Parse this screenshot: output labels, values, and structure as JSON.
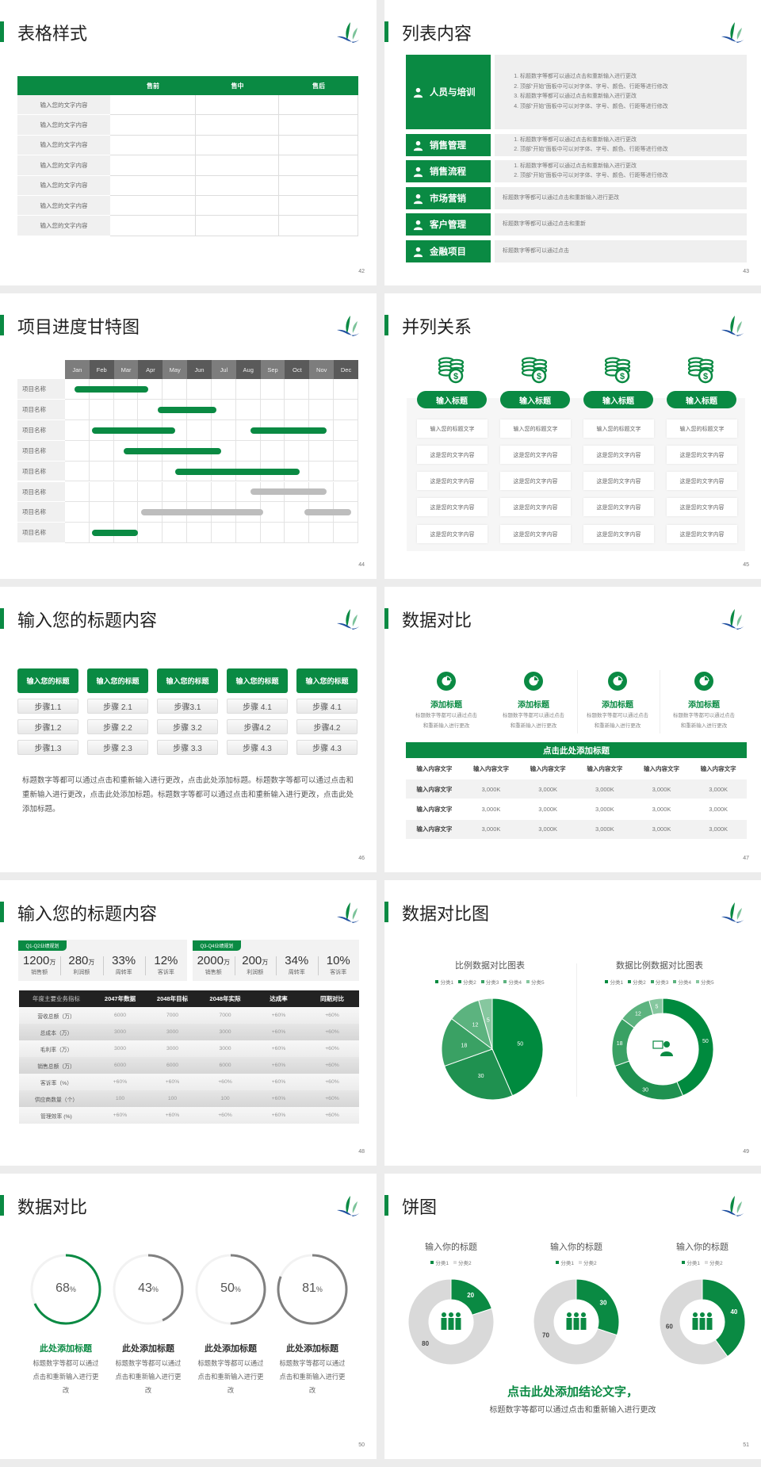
{
  "colors": {
    "green": "#0a8a43",
    "gray_bar": "#bdbdbd",
    "dark": "#222222",
    "ring_gray": "#808080",
    "track": "#f2f2f2",
    "donut_gray": "#d9d9d9"
  },
  "slides": {
    "s42": {
      "title": "表格样式",
      "page": "42",
      "headers": [
        "售前",
        "售中",
        "售后"
      ],
      "rows": [
        "输入您的文字内容",
        "输入您的文字内容",
        "输入您的文字内容",
        "输入您的文字内容",
        "输入您的文字内容",
        "输入您的文字内容",
        "输入您的文字内容"
      ]
    },
    "s43": {
      "title": "列表内容",
      "page": "43",
      "items": [
        {
          "label": "人员与培训",
          "icon": "people-training-icon",
          "lines": [
            "标题数字等都可以通过点击和重新输入进行更改",
            "顶部“开始”面板中可以对字体、字号、颜色、行距等进行修改",
            "标题数字等都可以通过点击和重新输入进行更改",
            "顶部“开始”面板中可以对字体、字号、颜色、行距等进行修改"
          ]
        },
        {
          "label": "销售管理",
          "icon": "user-gear-icon",
          "lines": [
            "标题数字等都可以通过点击和重新输入进行更改",
            "顶部“开始”面板中可以对字体、字号、颜色、行距等进行修改"
          ]
        },
        {
          "label": "销售流程",
          "icon": "shield-icon",
          "lines": [
            "标题数字等都可以通过点击和重新输入进行更改",
            "顶部“开始”面板中可以对字体、字号、颜色、行距等进行修改"
          ]
        },
        {
          "label": "市场营销",
          "icon": "bar-chart-icon",
          "text": "标题数字等都可以通过点击和重新输入进行更改"
        },
        {
          "label": "客户管理",
          "icon": "user-group-icon",
          "text": "标题数字等都可以通过点击和重新"
        },
        {
          "label": "金融项目",
          "icon": "money-hand-icon",
          "text": "标题数字等都可以通过点击"
        }
      ]
    },
    "s44": {
      "title": "项目进度甘特图",
      "page": "44",
      "months": [
        "Jan",
        "Feb",
        "Mar",
        "Apr",
        "May",
        "Jun",
        "Jul",
        "Aug",
        "Sep",
        "Oct",
        "Nov",
        "Dec"
      ],
      "rows": [
        {
          "name": "项目名称",
          "bars": [
            {
              "start": 0.4,
              "end": 3.4,
              "status": "green"
            }
          ]
        },
        {
          "name": "项目名称",
          "bars": [
            {
              "start": 3.8,
              "end": 6.2,
              "status": "green"
            }
          ]
        },
        {
          "name": "项目名称",
          "bars": [
            {
              "start": 1.1,
              "end": 4.5,
              "status": "green"
            },
            {
              "start": 7.6,
              "end": 10.7,
              "status": "green"
            }
          ]
        },
        {
          "name": "项目名称",
          "bars": [
            {
              "start": 2.4,
              "end": 6.4,
              "status": "green"
            }
          ]
        },
        {
          "name": "项目名称",
          "bars": [
            {
              "start": 4.5,
              "end": 9.6,
              "status": "green"
            }
          ]
        },
        {
          "name": "项目名称",
          "bars": [
            {
              "start": 7.6,
              "end": 10.7,
              "status": "gray"
            }
          ]
        },
        {
          "name": "项目名称",
          "bars": [
            {
              "start": 3.1,
              "end": 8.1,
              "status": "gray"
            },
            {
              "start": 9.8,
              "end": 11.7,
              "status": "gray"
            }
          ]
        },
        {
          "name": "项目名称",
          "bars": [
            {
              "start": 1.1,
              "end": 3.0,
              "status": "green"
            }
          ]
        }
      ]
    },
    "s45": {
      "title": "并列关系",
      "page": "45",
      "columns": [
        {
          "title": "输入标题",
          "icon": "coins-dollar-icon",
          "cells": [
            "输入您的标题文字",
            "这是您的文字内容",
            "这是您的文字内容",
            "这是您的文字内容",
            "这是您的文字内容"
          ]
        },
        {
          "title": "输入标题",
          "icon": "coins-dollar-icon",
          "cells": [
            "输入您的标题文字",
            "这是您的文字内容",
            "这是您的文字内容",
            "这是您的文字内容",
            "这是您的文字内容"
          ]
        },
        {
          "title": "输入标题",
          "icon": "coins-dollar-icon",
          "cells": [
            "输入您的标题文字",
            "这是您的文字内容",
            "这是您的文字内容",
            "这是您的文字内容",
            "这是您的文字内容"
          ]
        },
        {
          "title": "输入标题",
          "icon": "coins-dollar-icon",
          "cells": [
            "输入您的标题文字",
            "这是您的文字内容",
            "这是您的文字内容",
            "这是您的文字内容",
            "这是您的文字内容"
          ]
        }
      ]
    },
    "s46": {
      "title": "输入您的标题内容",
      "page": "46",
      "columns": [
        {
          "title": "输入您的标题",
          "steps": [
            "步骤1.1",
            "步骤1.2",
            "步骤1.3"
          ]
        },
        {
          "title": "输入您的标题",
          "steps": [
            "步骤 2.1",
            "步骤 2.2",
            "步骤 2.3"
          ]
        },
        {
          "title": "输入您的标题",
          "steps": [
            "步骤3.1",
            "步骤 3.2",
            "步骤 3.3"
          ]
        },
        {
          "title": "输入您的标题",
          "steps": [
            "步骤 4.1",
            "步骤4.2",
            "步骤 4.3"
          ]
        },
        {
          "title": "输入您的标题",
          "steps": [
            "步骤 4.1",
            "步骤4.2",
            "步骤 4.3"
          ]
        }
      ],
      "paragraph": "标题数字等都可以通过点击和重新输入进行更改，点击此处添加标题。标题数字等都可以通过点击和重新输入进行更改，点击此处添加标题。标题数字等都可以通过点击和重新输入进行更改，点击此处添加标题。"
    },
    "s47": {
      "title": "数据对比",
      "page": "47",
      "features": [
        {
          "title": "添加标题",
          "desc": "标题数字等都可以通过点击和重新输入进行更改",
          "icon": "pie-chart-icon"
        },
        {
          "title": "添加标题",
          "desc": "标题数字等都可以通过点击和重新输入进行更改",
          "icon": "pie-chart-icon"
        },
        {
          "title": "添加标题",
          "desc": "标题数字等都可以通过点击和重新输入进行更改",
          "icon": "pie-chart-icon"
        },
        {
          "title": "添加标题",
          "desc": "标题数字等都可以通过点击和重新输入进行更改",
          "icon": "pie-chart-icon"
        }
      ],
      "table": {
        "caption": "点击此处添加标题",
        "header": [
          "输入内容文字",
          "输入内容文字",
          "输入内容文字",
          "输入内容文字",
          "输入内容文字",
          "输入内容文字"
        ],
        "rows": [
          [
            "输入内容文字",
            "3,000K",
            "3,000K",
            "3,000K",
            "3,000K",
            "3,000K"
          ],
          [
            "输入内容文字",
            "3,000K",
            "3,000K",
            "3,000K",
            "3,000K",
            "3,000K"
          ],
          [
            "输入内容文字",
            "3,000K",
            "3,000K",
            "3,000K",
            "3,000K",
            "3,000K"
          ]
        ]
      }
    },
    "s48": {
      "title": "输入您的标题内容",
      "page": "48",
      "panels": [
        {
          "tag": "Q1-Q2业绩规划",
          "stats": [
            {
              "value": "1200",
              "unit": "万",
              "label": "销售额"
            },
            {
              "value": "280",
              "unit": "万",
              "label": "利润额"
            },
            {
              "value": "33%",
              "unit": "",
              "label": "周转率"
            },
            {
              "value": "12%",
              "unit": "",
              "label": "客诉率"
            }
          ]
        },
        {
          "tag": "Q3-Q4业绩规划",
          "stats": [
            {
              "value": "2000",
              "unit": "万",
              "label": "销售额"
            },
            {
              "value": "200",
              "unit": "万",
              "label": "利润额"
            },
            {
              "value": "34%",
              "unit": "",
              "label": "周转率"
            },
            {
              "value": "10%",
              "unit": "",
              "label": "客诉率"
            }
          ]
        }
      ],
      "table": {
        "header": [
          "年度主要业务指标",
          "2047年数据",
          "2048年目标",
          "2048年实际",
          "达成率",
          "同期对比"
        ],
        "rows": [
          [
            "营收总额（万）",
            "6000",
            "7000",
            "7000",
            "+60%",
            "+60%"
          ],
          [
            "总成本（万）",
            "3000",
            "3000",
            "3000",
            "+60%",
            "+60%"
          ],
          [
            "毛利率（万）",
            "3000",
            "3000",
            "3000",
            "+60%",
            "+60%"
          ],
          [
            "销售总额（万）",
            "6000",
            "6000",
            "6000",
            "+60%",
            "+60%"
          ],
          [
            "客诉率（%）",
            "+60%",
            "+60%",
            "+60%",
            "+60%",
            "+60%"
          ],
          [
            "供应商数量（个）",
            "100",
            "100",
            "100",
            "+60%",
            "+60%"
          ],
          [
            "管理效率 (%)",
            "+60%",
            "+60%",
            "+60%",
            "+60%",
            "+60%"
          ]
        ]
      }
    },
    "s49": {
      "title": "数据对比图",
      "page": "49",
      "chart_data": [
        {
          "type": "pie",
          "title": "比例数据对比图表",
          "legend": [
            "分类1",
            "分类2",
            "分类3",
            "分类4",
            "分类5"
          ],
          "values": [
            50,
            30,
            18,
            12,
            5
          ],
          "colors": [
            "#008a3e",
            "#1f9150",
            "#3aa164",
            "#5cb37f",
            "#86c79f"
          ]
        },
        {
          "type": "donut",
          "title": "数据比例数据对比图表",
          "legend": [
            "分类1",
            "分类2",
            "分类3",
            "分类4",
            "分类5"
          ],
          "values": [
            50,
            30,
            18,
            12,
            5
          ],
          "colors": [
            "#008a3e",
            "#1f9150",
            "#3aa164",
            "#5cb37f",
            "#86c79f"
          ],
          "center_icon": "customer-service-icon"
        }
      ]
    },
    "s50": {
      "title": "数据对比",
      "page": "50",
      "items": [
        {
          "percent": 68,
          "unit": "%",
          "title": "此处添加标题",
          "desc": "标题数字等都可以通过点击和重新输入进行更改",
          "accent": "green"
        },
        {
          "percent": 43,
          "unit": "%",
          "title": "此处添加标题",
          "desc": "标题数字等都可以通过点击和重新输入进行更改",
          "accent": "gray"
        },
        {
          "percent": 50,
          "unit": "%",
          "title": "此处添加标题",
          "desc": "标题数字等都可以通过点击和重新输入进行更改",
          "accent": "gray"
        },
        {
          "percent": 81,
          "unit": "%",
          "title": "此处添加标题",
          "desc": "标题数字等都可以通过点击和重新输入进行更改",
          "accent": "gray"
        }
      ]
    },
    "s51": {
      "title": "饼图",
      "page": "51",
      "chart_data": [
        {
          "type": "donut",
          "title": "输入你的标题",
          "legend": [
            "分类1",
            "分类2"
          ],
          "values": [
            20,
            80
          ]
        },
        {
          "type": "donut",
          "title": "输入你的标题",
          "legend": [
            "分类1",
            "分类2"
          ],
          "values": [
            30,
            70
          ]
        },
        {
          "type": "donut",
          "title": "输入你的标题",
          "legend": [
            "分类1",
            "分类2"
          ],
          "values": [
            40,
            60
          ]
        }
      ],
      "conclusion": "点击此处添加结论文字，",
      "subtitle": "标题数字等都可以通过点击和重新输入进行更改"
    }
  }
}
